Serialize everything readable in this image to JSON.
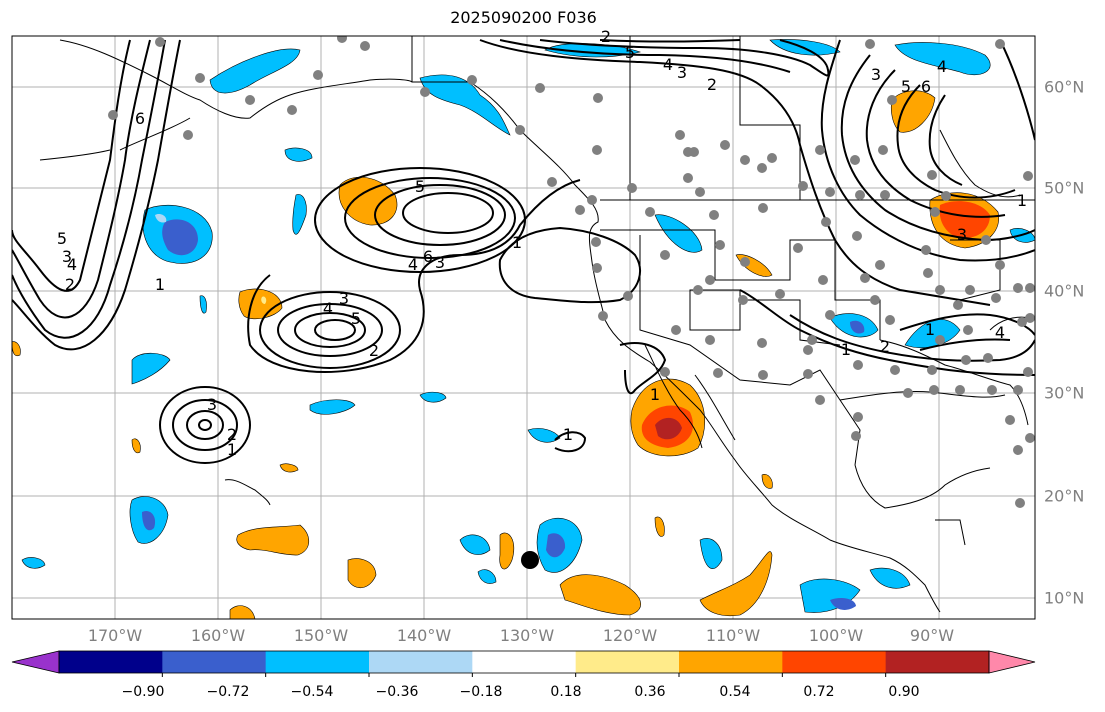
{
  "title": "2025090200 F036",
  "map": {
    "region": "North Pacific and North America",
    "coastline_color": "#000000",
    "grid_color": "#b0b0b0",
    "contour_color": "#000000",
    "station_marker_color": "#808080",
    "highlight_point_color": "#000000"
  },
  "axes": {
    "lon_labels": [
      "170°W",
      "160°W",
      "150°W",
      "140°W",
      "130°W",
      "120°W",
      "110°W",
      "100°W",
      "90°W"
    ],
    "lat_labels": [
      "60°N",
      "50°N",
      "40°N",
      "30°N",
      "20°N",
      "10°N"
    ]
  },
  "contour_labels": [
    "6",
    "5",
    "4",
    "3",
    "2",
    "1",
    "5",
    "4",
    "3",
    "2",
    "1",
    "5",
    "4",
    "3",
    "2",
    "1",
    "6",
    "5",
    "4",
    "3",
    "2",
    "1",
    "1",
    "1",
    "3",
    "5",
    "6",
    "4",
    "3",
    "2",
    "1",
    "4",
    "3",
    "2",
    "1"
  ],
  "colorbar": {
    "tick_labels": [
      "−0.90",
      "−0.72",
      "−0.54",
      "−0.36",
      "−0.18",
      "0.18",
      "0.36",
      "0.54",
      "0.72",
      "0.90"
    ],
    "colors": [
      "#9932cc",
      "#00008b",
      "#3a5fcd",
      "#00bfff",
      "#add8f5",
      "#ffffff",
      "#ffeb8a",
      "#ffa500",
      "#ff4500",
      "#b22222",
      "#ff88aa"
    ],
    "extend": "both"
  }
}
